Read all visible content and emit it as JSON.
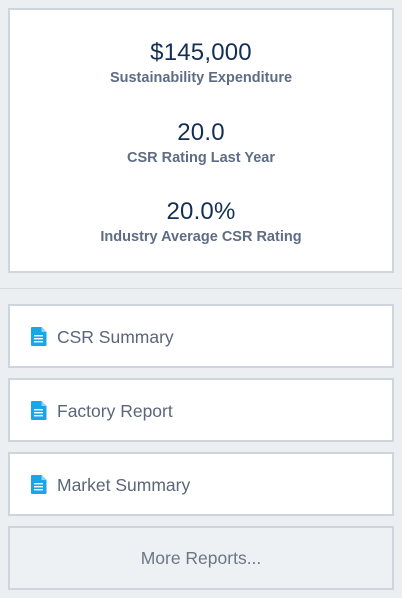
{
  "stats": [
    {
      "value": "$145,000",
      "label": "Sustainability Expenditure"
    },
    {
      "value": "20.0",
      "label": "CSR Rating Last Year"
    },
    {
      "value": "20.0%",
      "label": "Industry Average CSR Rating"
    }
  ],
  "reports": [
    {
      "label": "CSR Summary",
      "icon": "document-icon"
    },
    {
      "label": "Factory Report",
      "icon": "document-icon"
    },
    {
      "label": "Market Summary",
      "icon": "document-icon"
    }
  ],
  "more_reports_label": "More Reports...",
  "colors": {
    "background": "#eceff2",
    "card": "#ffffff",
    "border": "#cfd5dc",
    "value_text": "#132f55",
    "label_text": "#5e6d84",
    "icon_blue": "#1aa5e6"
  }
}
